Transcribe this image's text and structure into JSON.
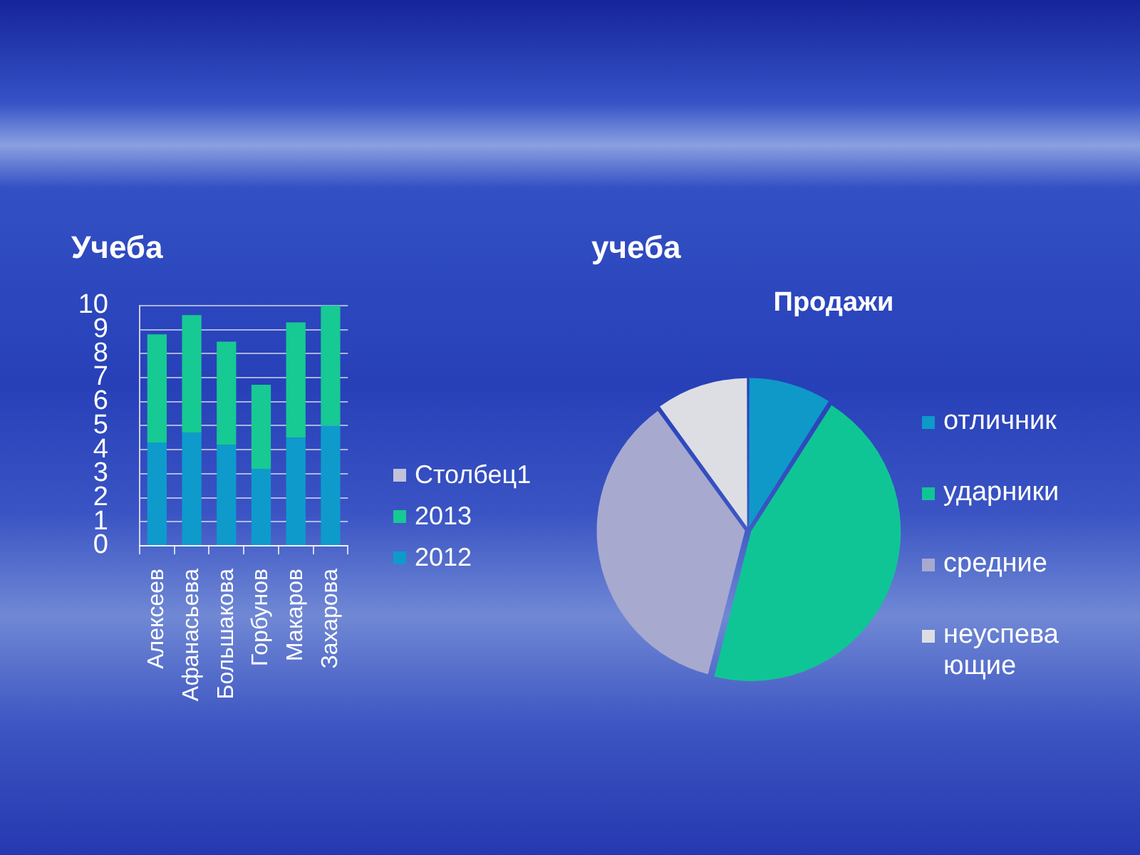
{
  "chart_data": [
    {
      "type": "bar",
      "title": "Учеба",
      "categories": [
        "Алексеев",
        "Афанасьева",
        "Большакова",
        "Горбунов",
        "Макаров",
        "Захарова"
      ],
      "stacked": true,
      "series": [
        {
          "name": "2012",
          "color": "#0e9bcb",
          "values": [
            4.3,
            4.7,
            4.2,
            3.2,
            4.5,
            5.0
          ]
        },
        {
          "name": "2013",
          "color": "#17c993",
          "values": [
            4.5,
            4.9,
            4.3,
            3.5,
            4.8,
            5.0
          ]
        },
        {
          "name": "Столбец1",
          "color": "#c2c2dc",
          "values": [
            null,
            null,
            null,
            null,
            null,
            null
          ]
        }
      ],
      "ylim": [
        0,
        10
      ],
      "yticks": [
        0,
        1,
        2,
        3,
        4,
        5,
        6,
        7,
        8,
        9,
        10
      ],
      "grid": "y",
      "legend": "right"
    },
    {
      "type": "pie",
      "title": "учеба",
      "subtitle": "Продажи",
      "categories": [
        "отличник",
        "ударники",
        "средние",
        "неуспевающие"
      ],
      "values": [
        9,
        45,
        36,
        10
      ],
      "colors": [
        "#0f99c9",
        "#10c595",
        "#a7a9cf",
        "#dddee4"
      ],
      "legend": "right"
    }
  ]
}
